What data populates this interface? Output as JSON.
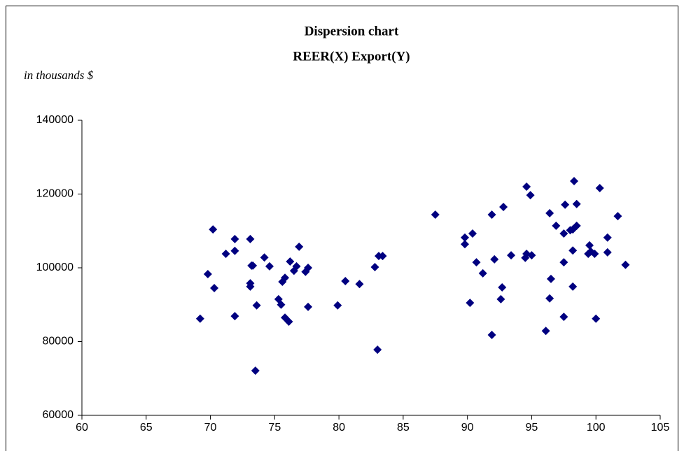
{
  "chart_data": {
    "type": "scatter",
    "title": "Dispersion chart",
    "subtitle": "REER(X) Export(Y)",
    "annotation": "in thousands $",
    "series": [
      {
        "color": "#000080",
        "x": [
          69.2,
          69.8,
          70.2,
          70.3,
          71.2,
          71.9,
          71.9,
          71.9,
          73.1,
          73.2,
          73.3,
          73.1,
          73.1,
          73.6,
          73.5,
          74.2,
          74.6,
          75.3,
          75.5,
          75.6,
          75.8,
          75.8,
          76.1,
          76.2,
          76.5,
          76.7,
          76.9,
          77.4,
          77.6,
          77.6,
          79.9,
          80.5,
          81.6,
          82.8,
          83.0,
          83.1,
          83.4,
          87.5,
          89.8,
          89.8,
          90.4,
          90.7,
          90.2,
          91.2,
          91.9,
          91.9,
          92.1,
          92.6,
          92.7,
          92.8,
          93.4,
          94.6,
          94.5,
          94.6,
          94.9,
          95.0,
          96.1,
          96.4,
          96.4,
          96.5,
          96.9,
          97.5,
          97.5,
          97.6,
          97.5,
          98.0,
          98.2,
          98.2,
          98.3,
          98.5,
          98.5,
          98.2,
          99.4,
          99.5,
          99.6,
          99.9,
          100.0,
          100.3,
          100.9,
          100.9,
          101.7,
          102.3
        ],
        "values": [
          86200,
          98300,
          110400,
          94500,
          103800,
          107800,
          104600,
          86900,
          107800,
          100600,
          100600,
          95800,
          94900,
          89800,
          72100,
          102800,
          100400,
          91500,
          90000,
          96200,
          97300,
          86500,
          85400,
          101700,
          99200,
          100400,
          105700,
          98900,
          100000,
          89400,
          89800,
          96400,
          95600,
          100200,
          77800,
          103200,
          103200,
          114400,
          108200,
          106400,
          109300,
          101500,
          90500,
          98500,
          114400,
          81800,
          102300,
          91500,
          94700,
          116500,
          103400,
          122000,
          102700,
          103800,
          119700,
          103400,
          82900,
          114800,
          91700,
          97000,
          111400,
          101500,
          109300,
          117100,
          86700,
          110200,
          94900,
          104700,
          123500,
          117300,
          111400,
          110400,
          103800,
          106100,
          104400,
          103800,
          86200,
          121600,
          108200,
          104200,
          114000,
          100800
        ]
      }
    ],
    "xlim": [
      60,
      105
    ],
    "xticks": [
      60,
      65,
      70,
      75,
      80,
      85,
      90,
      95,
      100,
      105
    ],
    "ylim": [
      60000,
      140000
    ],
    "yticks": [
      60000,
      80000,
      100000,
      120000,
      140000
    ],
    "grid": false
  }
}
